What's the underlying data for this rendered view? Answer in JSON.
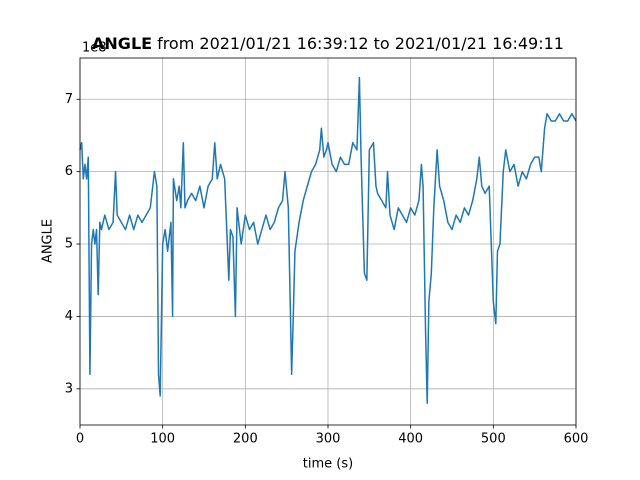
{
  "chart_data": {
    "type": "line",
    "title_bold": "ANGLE",
    "title": "from 2021/01/21 16:39:12 to 2021/01/21 16:49:11",
    "offset_text": "1e8",
    "xlabel": "time (s)",
    "ylabel": "ANGLE",
    "color": "#1f77b4",
    "grid": true,
    "xlim": [
      0,
      600
    ],
    "xticks": [
      0,
      100,
      200,
      300,
      400,
      500,
      600
    ],
    "ylim": [
      2.5,
      7.57
    ],
    "yticks": [
      3,
      4,
      5,
      6,
      7
    ],
    "x": [
      0,
      2,
      4,
      6,
      8,
      10,
      12,
      14,
      16,
      18,
      20,
      22,
      24,
      26,
      30,
      35,
      40,
      43,
      45,
      50,
      55,
      60,
      65,
      70,
      75,
      80,
      85,
      88,
      90,
      93,
      95,
      97,
      100,
      103,
      106,
      110,
      112,
      113,
      117,
      120,
      122,
      125,
      127,
      130,
      135,
      140,
      145,
      150,
      155,
      160,
      163,
      166,
      170,
      175,
      180,
      182,
      185,
      188,
      190,
      195,
      200,
      205,
      210,
      215,
      220,
      225,
      230,
      235,
      240,
      245,
      248,
      252,
      256,
      258,
      260,
      265,
      270,
      275,
      280,
      285,
      290,
      292,
      295,
      298,
      300,
      305,
      310,
      315,
      320,
      325,
      330,
      335,
      338,
      340,
      344,
      347,
      350,
      355,
      358,
      360,
      365,
      370,
      372,
      375,
      380,
      385,
      390,
      395,
      400,
      405,
      410,
      413,
      415,
      418,
      420,
      422,
      425,
      428,
      430,
      432,
      435,
      440,
      445,
      450,
      455,
      460,
      465,
      470,
      475,
      480,
      483,
      486,
      490,
      495,
      500,
      503,
      505,
      508,
      512,
      515,
      520,
      525,
      530,
      535,
      540,
      545,
      550,
      555,
      558,
      562,
      565,
      570,
      575,
      580,
      585,
      590,
      595,
      600
    ],
    "values": [
      6.3,
      6.4,
      5.9,
      6.1,
      5.9,
      6.2,
      3.2,
      5.0,
      5.2,
      5.0,
      5.2,
      4.3,
      5.3,
      5.2,
      5.4,
      5.2,
      5.3,
      6.0,
      5.4,
      5.3,
      5.2,
      5.4,
      5.2,
      5.4,
      5.3,
      5.4,
      5.5,
      5.8,
      6.0,
      5.8,
      3.2,
      2.9,
      5.0,
      5.2,
      4.9,
      5.3,
      4.0,
      5.9,
      5.6,
      5.8,
      5.5,
      6.4,
      5.5,
      5.6,
      5.7,
      5.6,
      5.8,
      5.5,
      5.8,
      5.9,
      6.4,
      5.9,
      6.1,
      5.9,
      4.5,
      5.2,
      5.1,
      4.0,
      5.5,
      5.0,
      5.4,
      5.2,
      5.3,
      5.0,
      5.2,
      5.4,
      5.2,
      5.3,
      5.5,
      5.6,
      6.0,
      5.5,
      3.2,
      4.0,
      4.9,
      5.3,
      5.6,
      5.8,
      6.0,
      6.1,
      6.3,
      6.6,
      6.2,
      6.3,
      6.4,
      6.1,
      6.0,
      6.2,
      6.1,
      6.1,
      6.4,
      6.3,
      7.3,
      6.2,
      4.6,
      4.5,
      6.3,
      6.4,
      5.8,
      5.7,
      5.6,
      5.5,
      6.0,
      5.4,
      5.2,
      5.5,
      5.4,
      5.3,
      5.5,
      5.4,
      5.6,
      6.1,
      5.8,
      3.8,
      2.8,
      4.2,
      4.6,
      5.5,
      5.9,
      6.3,
      5.8,
      5.6,
      5.3,
      5.2,
      5.4,
      5.3,
      5.5,
      5.4,
      5.6,
      5.9,
      6.2,
      5.8,
      5.7,
      5.8,
      4.2,
      3.9,
      4.9,
      5.0,
      6.0,
      6.3,
      6.0,
      6.1,
      5.8,
      6.0,
      5.9,
      6.1,
      6.2,
      6.2,
      6.0,
      6.6,
      6.8,
      6.7,
      6.7,
      6.8,
      6.7,
      6.7,
      6.8,
      6.7
    ]
  }
}
